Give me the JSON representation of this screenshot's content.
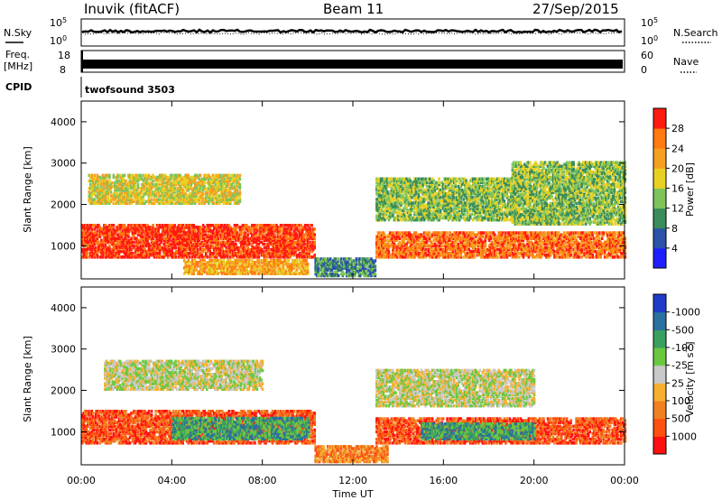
{
  "header": {
    "station": "Inuvik (fitACF)",
    "beam": "Beam 11",
    "date": "27/Sep/2015"
  },
  "status_panels": {
    "nsky_label": "N.Sky",
    "nsearch_label": "N.Search",
    "freq_label_1": "Freq.",
    "freq_label_2": "[MHz]",
    "nave_label": "Nave",
    "cpid_label": "CPID",
    "cpid_value": "twofsound 3503",
    "noise_ticks": [
      "10^5",
      "10^0"
    ],
    "noise_ticks_right": [
      "10^5",
      "10^0"
    ],
    "freq_ticks": [
      "18",
      "8"
    ],
    "nave_ticks": [
      "60",
      "0"
    ]
  },
  "x_axis": {
    "label": "Time UT",
    "ticks": [
      "00:00",
      "04:00",
      "08:00",
      "12:00",
      "16:00",
      "20:00",
      "00:00"
    ]
  },
  "chart_data": [
    {
      "type": "heatmap",
      "panel": "power",
      "ylabel": "Slant Range [km]",
      "yticks": [
        1000,
        2000,
        3000,
        4000
      ],
      "ylim": [
        200,
        4500
      ],
      "xlim_hours": [
        0,
        24
      ],
      "colorbar_label": "Power [dB]",
      "colorbar_ticks": [
        "4",
        "8",
        "12",
        "16",
        "20",
        "24",
        "28"
      ],
      "colors": [
        "#1e1eff",
        "#2a52a8",
        "#3b8c5a",
        "#7dc45a",
        "#e8d020",
        "#f5a020",
        "#ff7a10",
        "#ff1a10"
      ],
      "regions": [
        {
          "t0": 0,
          "t1": 10.3,
          "r0": 700,
          "r1": 1500,
          "level": 7
        },
        {
          "t0": 0.3,
          "t1": 7,
          "r0": 2000,
          "r1": 2700,
          "level": 4
        },
        {
          "t0": 4.5,
          "t1": 10,
          "r0": 300,
          "r1": 650,
          "level": 5
        },
        {
          "t0": 10.3,
          "t1": 13,
          "r0": 250,
          "r1": 700,
          "level": 2
        },
        {
          "t0": 13,
          "t1": 24,
          "r0": 700,
          "r1": 1300,
          "level": 6
        },
        {
          "t0": 13,
          "t1": 19,
          "r0": 1600,
          "r1": 2600,
          "level": 3
        },
        {
          "t0": 19,
          "t1": 24,
          "r0": 1500,
          "r1": 3000,
          "level": 3
        }
      ]
    },
    {
      "type": "heatmap",
      "panel": "velocity",
      "ylabel": "Slant Range [km]",
      "yticks": [
        1000,
        2000,
        3000,
        4000
      ],
      "ylim": [
        200,
        4500
      ],
      "xlim_hours": [
        0,
        24
      ],
      "colorbar_label": "Velocity [m s^-1]",
      "colorbar_ticks": [
        "1000",
        "500",
        "100",
        "25",
        "-25",
        "-100",
        "-500",
        "-1000"
      ],
      "colors": [
        "#1e3cc8",
        "#2a70a0",
        "#3aa060",
        "#6ac840",
        "#c8c8c8",
        "#f5b030",
        "#f08020",
        "#ff5010",
        "#ff1010"
      ],
      "regions": [
        {
          "t0": 0,
          "t1": 10.3,
          "r0": 700,
          "r1": 1500,
          "level": 7
        },
        {
          "t0": 4,
          "t1": 10,
          "r0": 800,
          "r1": 1300,
          "level": 2
        },
        {
          "t0": 1,
          "t1": 8,
          "r0": 2000,
          "r1": 2700,
          "level": 4
        },
        {
          "t0": 10.3,
          "t1": 13.5,
          "r0": 250,
          "r1": 650,
          "level": 6
        },
        {
          "t0": 13,
          "t1": 24,
          "r0": 700,
          "r1": 1300,
          "level": 7
        },
        {
          "t0": 15,
          "t1": 20,
          "r0": 800,
          "r1": 1200,
          "level": 2
        },
        {
          "t0": 13,
          "t1": 20,
          "r0": 1600,
          "r1": 2500,
          "level": 4
        }
      ]
    }
  ]
}
